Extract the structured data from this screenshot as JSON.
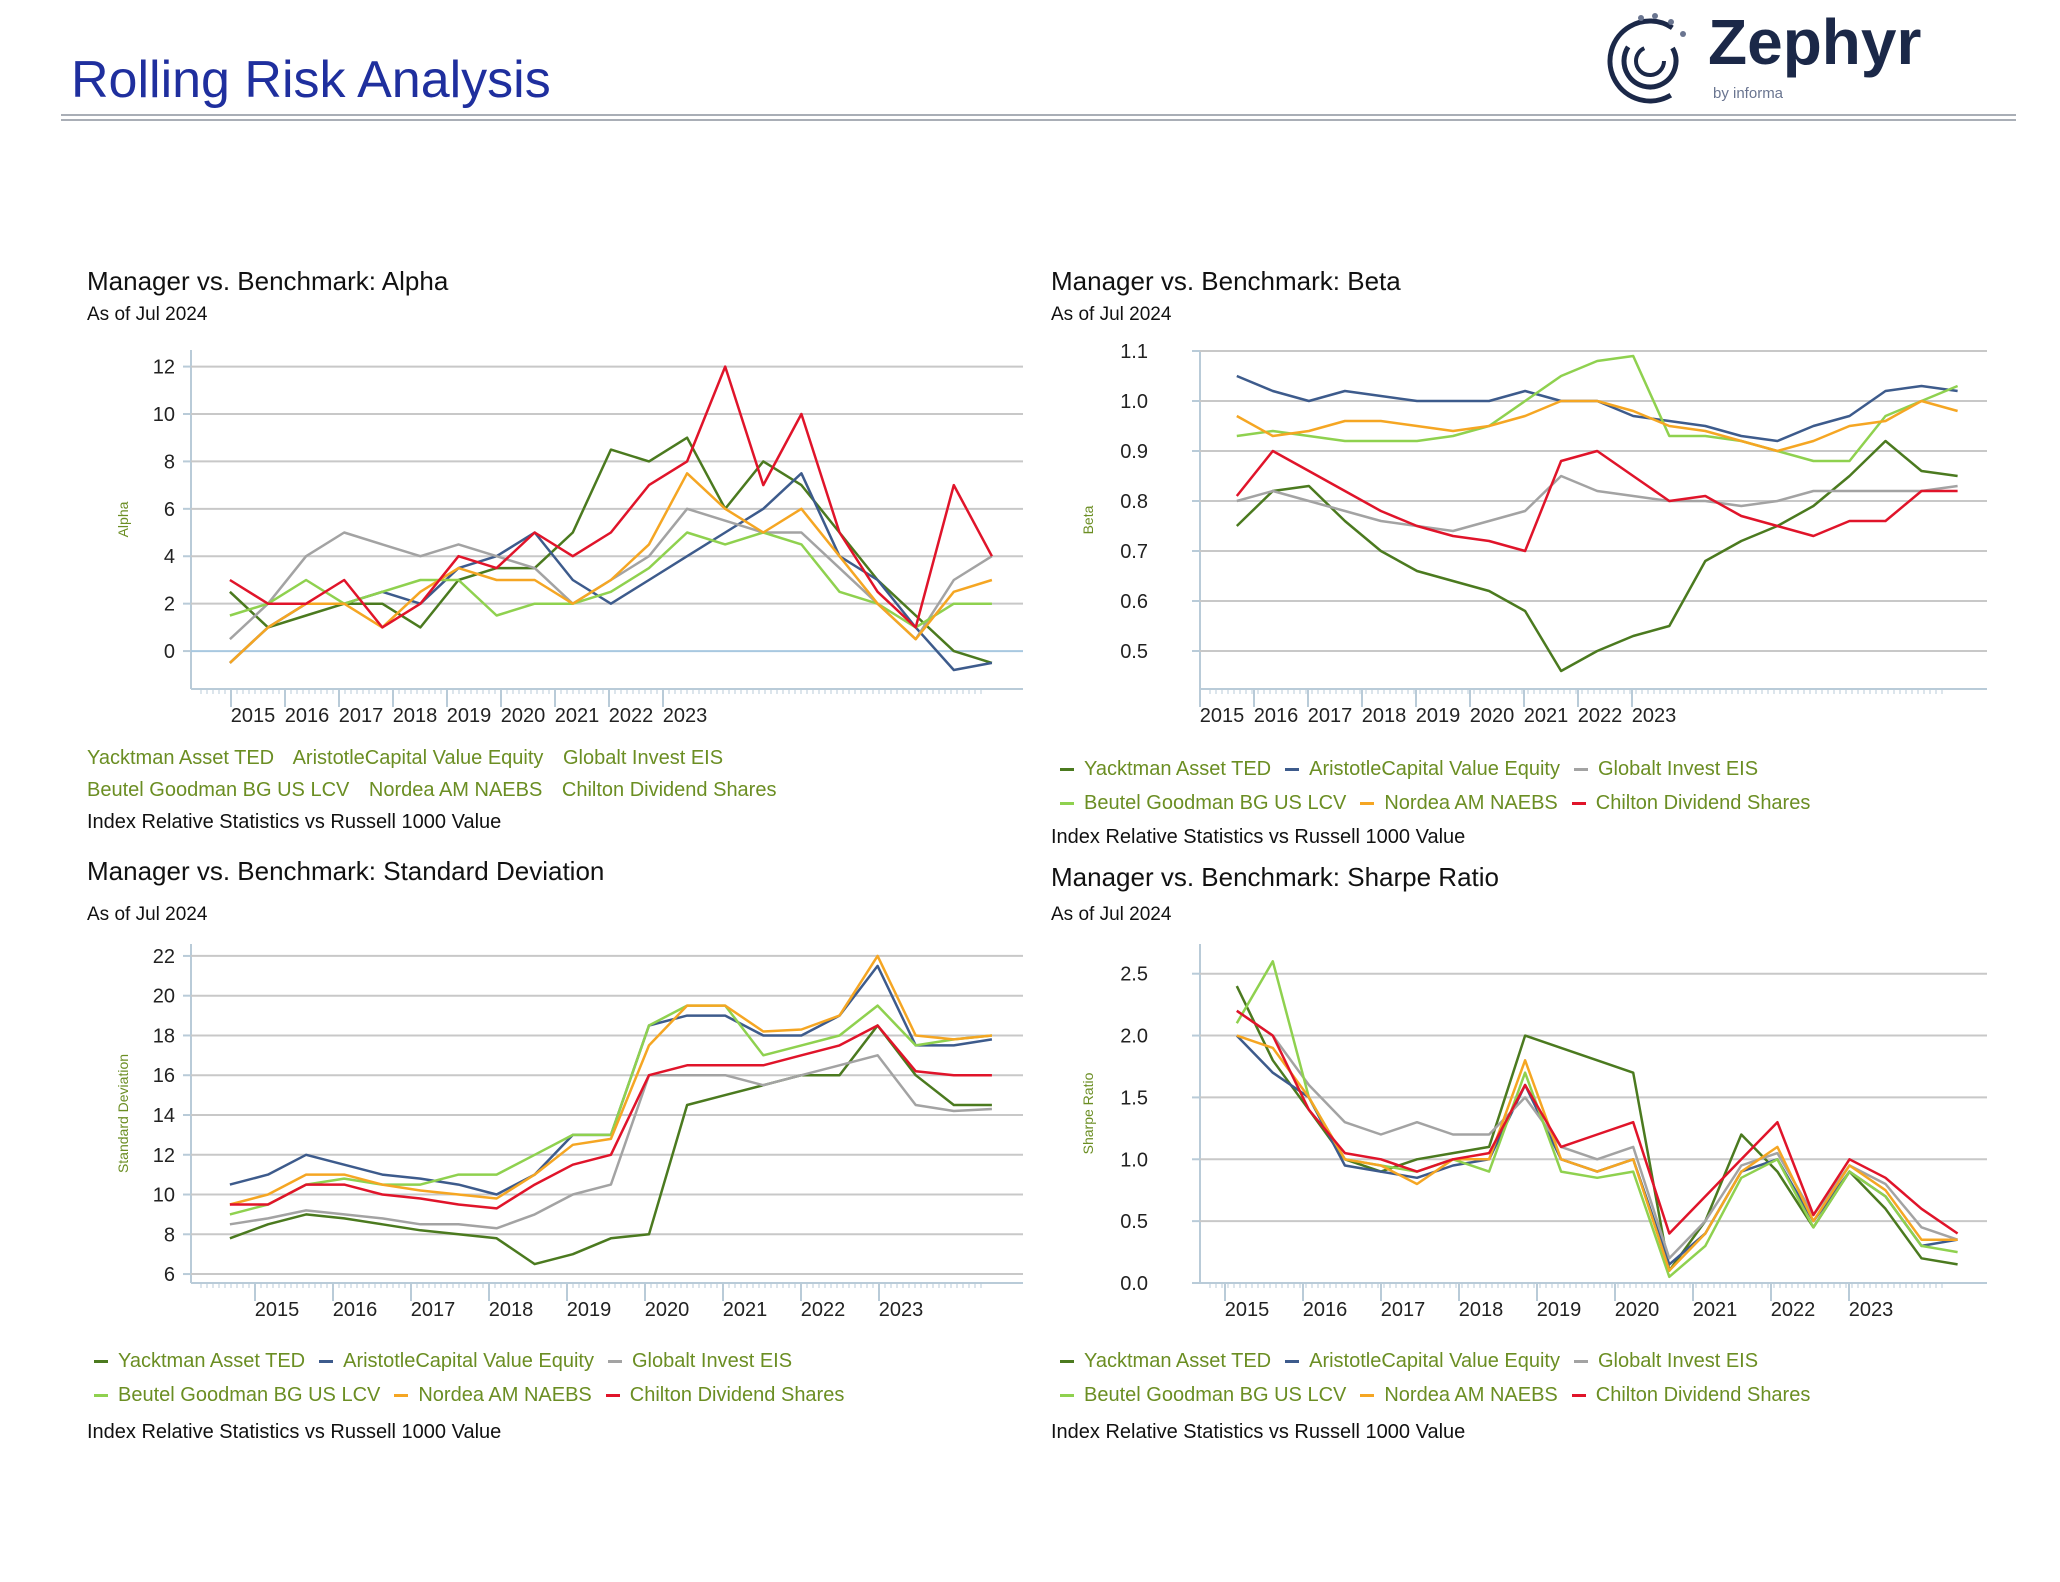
{
  "header": {
    "title": "Rolling Risk Analysis",
    "logo_text": "Zephyr",
    "logo_sub": "by informa"
  },
  "legend_names": [
    "Yacktman Asset TED",
    "AristotleCapital Value Equity",
    "Globalt Invest EIS",
    "Beutel Goodman BG US LCV",
    "Nordea AM NAEBS",
    "Chilton Dividend Shares"
  ],
  "colors": [
    "#4b7a1f",
    "#3d5b8c",
    "#a3a3a3",
    "#8fd14f",
    "#f5a623",
    "#e0142a"
  ],
  "source_note": "Index Relative Statistics vs Russell 1000 Value",
  "chart_data": [
    {
      "type": "line",
      "title": "Manager vs. Benchmark: Alpha",
      "subtitle": "As of Jul 2024",
      "ylabel": "Alpha",
      "ylim": [
        -1.6,
        12.7
      ],
      "xlim": [
        2013.9,
        2024.6
      ],
      "yticks": [
        0,
        2,
        4,
        6,
        8,
        10,
        12
      ],
      "xticks": [
        "2015",
        "2016",
        "2017",
        "2018",
        "2019",
        "2020",
        "2021",
        "2022",
        "2023"
      ],
      "grid": true,
      "x": [
        2014.4,
        2014.89,
        2015.38,
        2015.87,
        2016.36,
        2016.85,
        2017.34,
        2017.83,
        2018.32,
        2018.81,
        2019.3,
        2019.79,
        2020.28,
        2020.77,
        2021.26,
        2021.75,
        2022.24,
        2022.73,
        2023.22,
        2023.71,
        2024.2
      ],
      "series": [
        {
          "name": "Yacktman Asset TED",
          "values": [
            2.5,
            1,
            1.5,
            2,
            2,
            1,
            3,
            3.5,
            3.5,
            5,
            8.5,
            8,
            9,
            6,
            8,
            7,
            5,
            3,
            1.5,
            0,
            -0.5
          ]
        },
        {
          "name": "AristotleCapital Value Equity",
          "values": [
            -0.5,
            1,
            2,
            2,
            2.5,
            2,
            3.5,
            4,
            5,
            3,
            2,
            3,
            4,
            5,
            6,
            7.5,
            4,
            3,
            1,
            -0.8,
            -0.5
          ]
        },
        {
          "name": "Globalt Invest EIS",
          "values": [
            0.5,
            2,
            4,
            5,
            4.5,
            4,
            4.5,
            4,
            3.5,
            2,
            3,
            4,
            6,
            5.5,
            5,
            5,
            3.5,
            2,
            0.5,
            3,
            4
          ]
        },
        {
          "name": "Beutel Goodman BG US LCV",
          "values": [
            1.5,
            2,
            3,
            2,
            2.5,
            3,
            3,
            1.5,
            2,
            2,
            2.5,
            3.5,
            5,
            4.5,
            5,
            4.5,
            2.5,
            2,
            1,
            2,
            2
          ]
        },
        {
          "name": "Nordea AM NAEBS",
          "values": [
            -0.5,
            1,
            2,
            2,
            1,
            2.5,
            3.5,
            3,
            3,
            2,
            3,
            4.5,
            7.5,
            6,
            5,
            6,
            4,
            2,
            0.5,
            2.5,
            3
          ]
        },
        {
          "name": "Chilton Dividend Shares",
          "values": [
            3,
            2,
            2,
            3,
            1,
            2,
            4,
            3.5,
            5,
            4,
            5,
            7,
            8,
            12,
            7,
            10,
            5,
            2.5,
            1,
            7,
            4
          ]
        }
      ]
    },
    {
      "type": "line",
      "title": "Manager vs. Benchmark: Beta",
      "subtitle": "As of Jul 2024",
      "ylabel": "Beta",
      "ylim": [
        0.424,
        1.1
      ],
      "xlim": [
        2013.9,
        2024.6
      ],
      "yticks": [
        0.5,
        0.6,
        0.7,
        0.8,
        0.9,
        1.0,
        1.1
      ],
      "xticks": [
        "2015",
        "2016",
        "2017",
        "2018",
        "2019",
        "2020",
        "2021",
        "2022",
        "2023"
      ],
      "grid": true,
      "x": [
        2014.4,
        2014.89,
        2015.38,
        2015.87,
        2016.36,
        2016.85,
        2017.34,
        2017.83,
        2018.32,
        2018.81,
        2019.3,
        2019.79,
        2020.28,
        2020.77,
        2021.26,
        2021.75,
        2022.24,
        2022.73,
        2023.22,
        2023.71,
        2024.2
      ],
      "series": [
        {
          "name": "Yacktman Asset TED",
          "values": [
            0.75,
            0.82,
            0.83,
            0.76,
            0.7,
            0.66,
            0.64,
            0.62,
            0.58,
            0.46,
            0.5,
            0.53,
            0.55,
            0.68,
            0.72,
            0.75,
            0.79,
            0.85,
            0.92,
            0.86,
            0.85
          ]
        },
        {
          "name": "AristotleCapital Value Equity",
          "values": [
            1.05,
            1.02,
            1.0,
            1.02,
            1.01,
            1.0,
            1.0,
            1.0,
            1.02,
            1.0,
            1.0,
            0.97,
            0.96,
            0.95,
            0.93,
            0.92,
            0.95,
            0.97,
            1.02,
            1.03,
            1.02
          ]
        },
        {
          "name": "Globalt Invest EIS",
          "values": [
            0.8,
            0.82,
            0.8,
            0.78,
            0.76,
            0.75,
            0.74,
            0.76,
            0.78,
            0.85,
            0.82,
            0.81,
            0.8,
            0.8,
            0.79,
            0.8,
            0.82,
            0.82,
            0.82,
            0.82,
            0.83
          ]
        },
        {
          "name": "Beutel Goodman BG US LCV",
          "values": [
            0.93,
            0.94,
            0.93,
            0.92,
            0.92,
            0.92,
            0.93,
            0.95,
            1.0,
            1.05,
            1.08,
            1.09,
            0.93,
            0.93,
            0.92,
            0.9,
            0.88,
            0.88,
            0.97,
            1.0,
            1.03
          ]
        },
        {
          "name": "Nordea AM NAEBS",
          "values": [
            0.97,
            0.93,
            0.94,
            0.96,
            0.96,
            0.95,
            0.94,
            0.95,
            0.97,
            1.0,
            1.0,
            0.98,
            0.95,
            0.94,
            0.92,
            0.9,
            0.92,
            0.95,
            0.96,
            1.0,
            0.98
          ]
        },
        {
          "name": "Chilton Dividend Shares",
          "values": [
            0.81,
            0.9,
            0.86,
            0.82,
            0.78,
            0.75,
            0.73,
            0.72,
            0.7,
            0.88,
            0.9,
            0.85,
            0.8,
            0.81,
            0.77,
            0.75,
            0.73,
            0.76,
            0.76,
            0.82,
            0.82
          ]
        }
      ]
    },
    {
      "type": "line",
      "title": "Manager vs. Benchmark: Standard Deviation",
      "subtitle": "As of Jul 2024",
      "ylabel": "Standard Deviation",
      "ylim": [
        5.55,
        22.6
      ],
      "xlim": [
        2013.9,
        2024.6
      ],
      "yticks": [
        6,
        8,
        10,
        12,
        14,
        16,
        18,
        20,
        22
      ],
      "xticks": [
        "2015",
        "2016",
        "2017",
        "2018",
        "2019",
        "2020",
        "2021",
        "2022",
        "2023"
      ],
      "grid": true,
      "x": [
        2014.4,
        2014.89,
        2015.38,
        2015.87,
        2016.36,
        2016.85,
        2017.34,
        2017.83,
        2018.32,
        2018.81,
        2019.3,
        2019.79,
        2020.28,
        2020.77,
        2021.26,
        2021.75,
        2022.24,
        2022.73,
        2023.22,
        2023.71,
        2024.2
      ],
      "series": [
        {
          "name": "Yacktman Asset TED",
          "values": [
            7.8,
            8.5,
            9,
            8.8,
            8.5,
            8.2,
            8,
            7.8,
            6.5,
            7,
            7.8,
            8,
            14.5,
            15,
            15.5,
            16,
            16,
            18.5,
            16,
            14.5,
            14.5
          ]
        },
        {
          "name": "AristotleCapital Value Equity",
          "values": [
            10.5,
            11,
            12,
            11.5,
            11,
            10.8,
            10.5,
            10,
            11,
            13,
            13,
            18.5,
            19,
            19,
            18,
            18,
            19,
            21.5,
            17.5,
            17.5,
            17.8
          ]
        },
        {
          "name": "Globalt Invest EIS",
          "values": [
            8.5,
            8.8,
            9.2,
            9,
            8.8,
            8.5,
            8.5,
            8.3,
            9,
            10,
            10.5,
            16,
            16,
            16,
            15.5,
            16,
            16.5,
            17,
            14.5,
            14.2,
            14.3
          ]
        },
        {
          "name": "Beutel Goodman BG US LCV",
          "values": [
            9,
            9.5,
            10.5,
            10.8,
            10.5,
            10.5,
            11,
            11,
            12,
            13,
            13,
            18.5,
            19.5,
            19.5,
            17,
            17.5,
            18,
            19.5,
            17.5,
            17.8,
            18
          ]
        },
        {
          "name": "Nordea AM NAEBS",
          "values": [
            9.5,
            10,
            11,
            11,
            10.5,
            10.2,
            10,
            9.8,
            11,
            12.5,
            12.8,
            17.5,
            19.5,
            19.5,
            18.2,
            18.3,
            19,
            22,
            18,
            17.8,
            18
          ]
        },
        {
          "name": "Chilton Dividend Shares",
          "values": [
            9.5,
            9.5,
            10.5,
            10.5,
            10,
            9.8,
            9.5,
            9.3,
            10.5,
            11.5,
            12,
            16,
            16.5,
            16.5,
            16.5,
            17,
            17.5,
            18.5,
            16.2,
            16,
            16
          ]
        }
      ]
    },
    {
      "type": "line",
      "title": "Manager vs. Benchmark: Sharpe Ratio",
      "subtitle": "As of Jul 2024",
      "ylabel": "Sharpe Ratio",
      "ylim": [
        0,
        2.74
      ],
      "xlim": [
        2013.9,
        2024.6
      ],
      "yticks": [
        0.0,
        0.5,
        1.0,
        1.5,
        2.0,
        2.5
      ],
      "xticks": [
        "2015",
        "2016",
        "2017",
        "2018",
        "2019",
        "2020",
        "2021",
        "2022",
        "2023"
      ],
      "grid": true,
      "x": [
        2014.4,
        2014.89,
        2015.38,
        2015.87,
        2016.36,
        2016.85,
        2017.34,
        2017.83,
        2018.32,
        2018.81,
        2019.3,
        2019.79,
        2020.28,
        2020.77,
        2021.26,
        2021.75,
        2022.24,
        2022.73,
        2023.22,
        2023.71,
        2024.2
      ],
      "series": [
        {
          "name": "Yacktman Asset TED",
          "values": [
            2.4,
            1.8,
            1.4,
            1.0,
            0.9,
            1.0,
            1.05,
            1.1,
            2.0,
            1.9,
            1.8,
            1.7,
            0.1,
            0.5,
            1.2,
            0.9,
            0.45,
            0.9,
            0.6,
            0.2,
            0.15
          ]
        },
        {
          "name": "AristotleCapital Value Equity",
          "values": [
            2.0,
            1.7,
            1.5,
            0.95,
            0.9,
            0.85,
            0.95,
            1.0,
            1.6,
            1.0,
            0.9,
            1.0,
            0.15,
            0.4,
            0.9,
            1.0,
            0.5,
            0.9,
            0.7,
            0.3,
            0.35
          ]
        },
        {
          "name": "Globalt Invest EIS",
          "values": [
            2.2,
            2.0,
            1.6,
            1.3,
            1.2,
            1.3,
            1.2,
            1.2,
            1.5,
            1.1,
            1.0,
            1.1,
            0.2,
            0.5,
            0.95,
            1.05,
            0.55,
            0.95,
            0.8,
            0.45,
            0.35
          ]
        },
        {
          "name": "Beutel Goodman BG US LCV",
          "values": [
            2.1,
            2.6,
            1.5,
            1.0,
            0.95,
            0.9,
            1.0,
            0.9,
            1.7,
            0.9,
            0.85,
            0.9,
            0.05,
            0.3,
            0.85,
            1.0,
            0.45,
            0.9,
            0.7,
            0.3,
            0.25
          ]
        },
        {
          "name": "Nordea AM NAEBS",
          "values": [
            2.0,
            1.9,
            1.5,
            1.0,
            0.95,
            0.8,
            1.0,
            1.0,
            1.8,
            1.0,
            0.9,
            1.0,
            0.1,
            0.4,
            0.9,
            1.1,
            0.5,
            0.95,
            0.75,
            0.35,
            0.35
          ]
        },
        {
          "name": "Chilton Dividend Shares",
          "values": [
            2.2,
            2.0,
            1.4,
            1.05,
            1.0,
            0.9,
            1.0,
            1.05,
            1.6,
            1.1,
            1.2,
            1.3,
            0.4,
            0.7,
            1.0,
            1.3,
            0.55,
            1.0,
            0.85,
            0.6,
            0.4
          ]
        }
      ]
    }
  ]
}
